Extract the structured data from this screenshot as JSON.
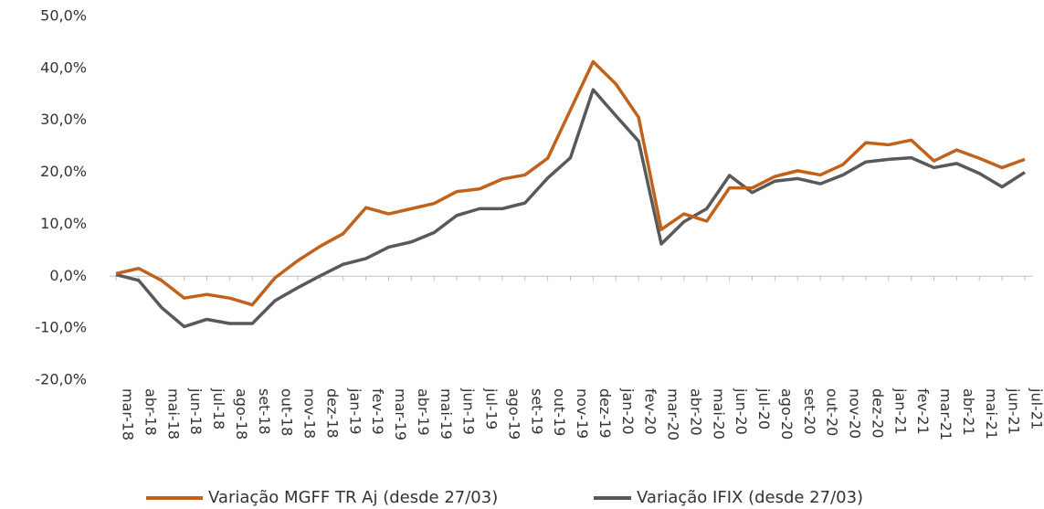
{
  "chart_data": {
    "type": "line",
    "categories": [
      "mar-18",
      "abr-18",
      "mai-18",
      "jun-18",
      "jul-18",
      "ago-18",
      "set-18",
      "out-18",
      "nov-18",
      "dez-18",
      "jan-19",
      "fev-19",
      "mar-19",
      "abr-19",
      "mai-19",
      "jun-19",
      "jul-19",
      "ago-19",
      "set-19",
      "out-19",
      "nov-19",
      "dez-19",
      "jan-20",
      "fev-20",
      "mar-20",
      "abr-20",
      "mai-20",
      "jun-20",
      "jul-20",
      "ago-20",
      "set-20",
      "out-20",
      "nov-20",
      "dez-20",
      "jan-21",
      "fev-21",
      "mar-21",
      "abr-21",
      "mai-21",
      "jun-21",
      "jul-21"
    ],
    "series": [
      {
        "name": "Variação MGFF TR Aj (desde 27/03)",
        "color": "#c0621c",
        "values": [
          0.5,
          1.5,
          -0.8,
          -4.2,
          -3.5,
          -4.2,
          -5.5,
          -0.3,
          3,
          5.8,
          8.2,
          13.2,
          12,
          13,
          14,
          16.3,
          16.8,
          18.7,
          19.5,
          22.7,
          32,
          41.3,
          37,
          30.6,
          9,
          12,
          10.6,
          17,
          17,
          19.2,
          20.3,
          19.5,
          21.5,
          25.7,
          25.3,
          26.2,
          22.2,
          24.3,
          22.7,
          20.9,
          22.5
        ]
      },
      {
        "name": "Variação IFIX (desde 27/03)",
        "color": "#595959",
        "values": [
          0.3,
          -0.8,
          -6,
          -9.7,
          -8.3,
          -9.1,
          -9.1,
          -4.7,
          -2.2,
          0.1,
          2.3,
          3.4,
          5.6,
          6.6,
          8.4,
          11.7,
          13,
          13,
          14.1,
          18.9,
          22.8,
          35.9,
          30.9,
          26,
          6.2,
          10.5,
          13,
          19.4,
          16.1,
          18.3,
          18.8,
          17.8,
          19.5,
          22,
          22.5,
          22.8,
          20.9,
          21.7,
          19.8,
          17.2,
          20
        ]
      }
    ],
    "ylim": [
      -20,
      50
    ],
    "yticks": [
      {
        "value": -20,
        "label": "-20,0%"
      },
      {
        "value": -10,
        "label": "-10,0%"
      },
      {
        "value": 0,
        "label": "0,0%"
      },
      {
        "value": 10,
        "label": "10,0%"
      },
      {
        "value": 20,
        "label": "20,0%"
      },
      {
        "value": 30,
        "label": "30,0%"
      },
      {
        "value": 40,
        "label": "40,0%"
      },
      {
        "value": 50,
        "label": "50,0%"
      }
    ],
    "grid": false
  }
}
